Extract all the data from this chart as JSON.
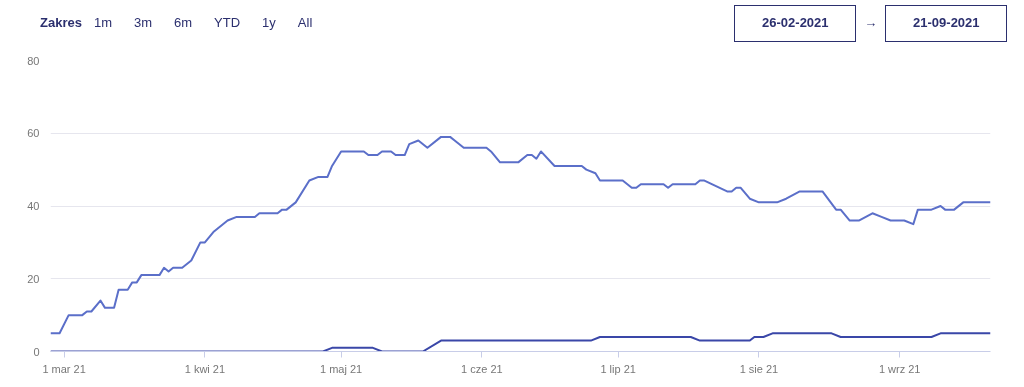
{
  "chart_data": {
    "type": "line",
    "annotations": [
      "Zakres",
      "1m",
      "3m",
      "6m",
      "YTD",
      "1y",
      "All",
      "26-02-2021",
      "→",
      "21-09-2021"
    ],
    "xlim": [
      "2021-02-26",
      "2021-09-21"
    ],
    "ylim": [
      0,
      80
    ],
    "yticks": [
      0,
      20,
      40,
      60,
      80
    ],
    "xticks": [
      {
        "value": "2021-03-01",
        "label": "1 mar 21"
      },
      {
        "value": "2021-04-01",
        "label": "1 kwi 21"
      },
      {
        "value": "2021-05-01",
        "label": "1 maj 21"
      },
      {
        "value": "2021-06-01",
        "label": "1 cze 21"
      },
      {
        "value": "2021-07-01",
        "label": "1 lip 21"
      },
      {
        "value": "2021-08-01",
        "label": "1 sie 21"
      },
      {
        "value": "2021-09-01",
        "label": "1 wrz 21"
      }
    ],
    "grid": "y",
    "marker": "none",
    "line_style": "solid",
    "series": [
      {
        "color": "#5b6fc9",
        "x": [
          "2021-02-26",
          "2021-02-28",
          "2021-03-02",
          "2021-03-05",
          "2021-03-06",
          "2021-03-07",
          "2021-03-09",
          "2021-03-10",
          "2021-03-12",
          "2021-03-13",
          "2021-03-15",
          "2021-03-16",
          "2021-03-17",
          "2021-03-18",
          "2021-03-22",
          "2021-03-23",
          "2021-03-24",
          "2021-03-25",
          "2021-03-27",
          "2021-03-29",
          "2021-03-31",
          "2021-04-01",
          "2021-04-03",
          "2021-04-06",
          "2021-04-08",
          "2021-04-12",
          "2021-04-13",
          "2021-04-17",
          "2021-04-18",
          "2021-04-19",
          "2021-04-21",
          "2021-04-24",
          "2021-04-26",
          "2021-04-28",
          "2021-04-29",
          "2021-05-01",
          "2021-05-06",
          "2021-05-07",
          "2021-05-09",
          "2021-05-10",
          "2021-05-12",
          "2021-05-13",
          "2021-05-15",
          "2021-05-16",
          "2021-05-18",
          "2021-05-20",
          "2021-05-23",
          "2021-05-25",
          "2021-05-26",
          "2021-05-28",
          "2021-06-02",
          "2021-06-03",
          "2021-06-05",
          "2021-06-09",
          "2021-06-11",
          "2021-06-12",
          "2021-06-13",
          "2021-06-14",
          "2021-06-17",
          "2021-06-23",
          "2021-06-24",
          "2021-06-26",
          "2021-06-27",
          "2021-07-02",
          "2021-07-04",
          "2021-07-05",
          "2021-07-06",
          "2021-07-11",
          "2021-07-12",
          "2021-07-13",
          "2021-07-18",
          "2021-07-19",
          "2021-07-20",
          "2021-07-25",
          "2021-07-26",
          "2021-07-27",
          "2021-07-28",
          "2021-07-30",
          "2021-08-01",
          "2021-08-05",
          "2021-08-07",
          "2021-08-10",
          "2021-08-15",
          "2021-08-18",
          "2021-08-19",
          "2021-08-21",
          "2021-08-23",
          "2021-08-26",
          "2021-08-28",
          "2021-08-30",
          "2021-09-02",
          "2021-09-04",
          "2021-09-05",
          "2021-09-08",
          "2021-09-10",
          "2021-09-11",
          "2021-09-13",
          "2021-09-15",
          "2021-09-21"
        ],
        "values": [
          5,
          5,
          10,
          10,
          11,
          11,
          14,
          12,
          12,
          17,
          17,
          19,
          19,
          21,
          21,
          23,
          22,
          23,
          23,
          25,
          30,
          30,
          33,
          36,
          37,
          37,
          38,
          38,
          39,
          39,
          41,
          47,
          48,
          48,
          51,
          55,
          55,
          54,
          54,
          55,
          55,
          54,
          54,
          57,
          58,
          56,
          59,
          59,
          58,
          56,
          56,
          55,
          52,
          52,
          54,
          54,
          53,
          55,
          51,
          51,
          50,
          49,
          47,
          47,
          45,
          45,
          46,
          46,
          45,
          46,
          46,
          47,
          47,
          44,
          44,
          45,
          45,
          42,
          41,
          41,
          42,
          44,
          44,
          39,
          39,
          36,
          36,
          38,
          37,
          36,
          36,
          35,
          39,
          39,
          40,
          39,
          39,
          41,
          41
        ]
      },
      {
        "color": "#3a47a8",
        "x": [
          "2021-02-26",
          "2021-04-27",
          "2021-04-29",
          "2021-05-08",
          "2021-05-10",
          "2021-05-19",
          "2021-05-23",
          "2021-06-25",
          "2021-06-27",
          "2021-07-17",
          "2021-07-19",
          "2021-07-30",
          "2021-07-31",
          "2021-08-02",
          "2021-08-04",
          "2021-08-17",
          "2021-08-19",
          "2021-09-08",
          "2021-09-10",
          "2021-09-21"
        ],
        "values": [
          0,
          0,
          1,
          1,
          0,
          0,
          3,
          3,
          4,
          4,
          3,
          3,
          4,
          4,
          5,
          5,
          4,
          4,
          5,
          5
        ]
      }
    ]
  }
}
